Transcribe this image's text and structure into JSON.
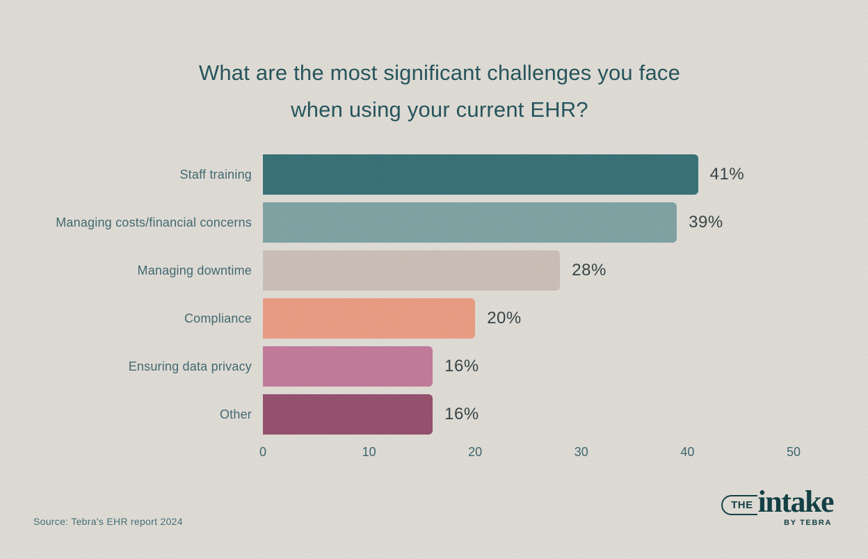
{
  "title": {
    "line1": "What are the most significant challenges you face",
    "line2": "when using your current EHR?"
  },
  "source": "Source: Tebra's EHR report 2024",
  "logo": {
    "the": "THE",
    "intake": "intake",
    "byline": "BY TEBRA"
  },
  "colors": {
    "background": "#f4f1ea",
    "title_text": "#2b5e66",
    "category_text": "#4a747e",
    "value_text": "#3e4b4f",
    "tick_text": "#45707a",
    "logo_text": "#17474c"
  },
  "chart_data": {
    "type": "bar",
    "orientation": "horizontal",
    "title": "What are the most significant challenges you face when using your current EHR?",
    "categories": [
      "Staff training",
      "Managing costs/financial concerns",
      "Managing downtime",
      "Compliance",
      "Ensuring data privacy",
      "Other"
    ],
    "values": [
      41,
      39,
      28,
      20,
      16,
      16
    ],
    "value_labels": [
      "41%",
      "39%",
      "28%",
      "20%",
      "16%",
      "16%"
    ],
    "bar_colors": [
      "#3f7d84",
      "#8db3b4",
      "#ded1c8",
      "#ffac90",
      "#d488a9",
      "#a45a79"
    ],
    "x_ticks": [
      0,
      10,
      20,
      30,
      40,
      50
    ],
    "xlim": [
      0,
      50
    ],
    "xlabel": "",
    "ylabel": "",
    "grid": false,
    "legend": "none"
  }
}
